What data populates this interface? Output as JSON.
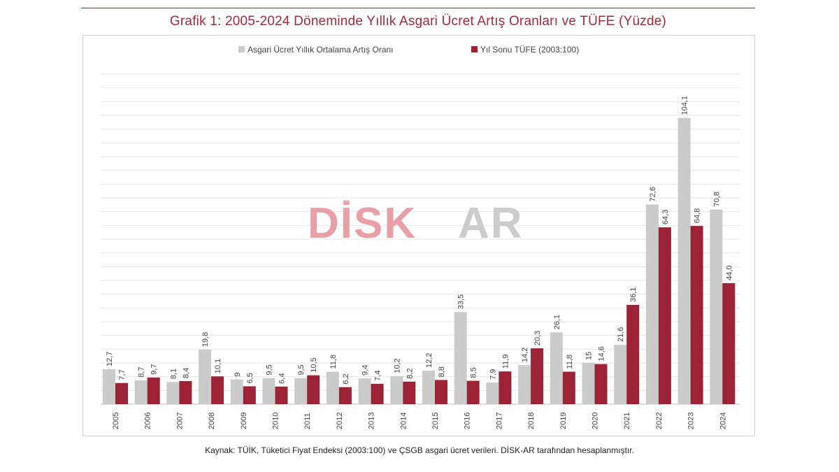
{
  "title": "Grafik 1: 2005-2024 Döneminde Yıllık Asgari Ücret Artış Oranları ve TÜFE (Yüzde)",
  "source": "Kaynak: TÜİK, Tüketici Fiyat Endeksi (2003:100) ve ÇSGB asgari ücret verileri. DİSK-AR tarafından hesaplanmıştır.",
  "watermark": {
    "part1": "DİSK",
    "part2": "AR"
  },
  "colors": {
    "series1": "#cbcbcb",
    "series2": "#9b2335",
    "title": "#a12a3c",
    "watermark1": "#e8a0a6",
    "watermark2": "#cccccc"
  },
  "chart_data": {
    "type": "bar",
    "categories": [
      "2005",
      "2006",
      "2007",
      "2008",
      "2009",
      "2010",
      "2011",
      "2012",
      "2013",
      "2014",
      "2015",
      "2016",
      "2017",
      "2018",
      "2019",
      "2020",
      "2021",
      "2022",
      "2023",
      "2024"
    ],
    "series": [
      {
        "name": "Asgari Ücret Yıllık Ortalama Artış Oranı",
        "values": [
          12.7,
          8.7,
          8.1,
          19.8,
          9,
          9.5,
          9.5,
          11.8,
          9.4,
          10.2,
          12.2,
          33.5,
          7.9,
          14.2,
          26.1,
          15,
          21.6,
          72.6,
          104.1,
          70.8
        ],
        "labels": [
          "12,7",
          "8,7",
          "8,1",
          "19,8",
          "9",
          "9,5",
          "9,5",
          "11,8",
          "9,4",
          "10,2",
          "12,2",
          "33,5",
          "7,9",
          "14,2",
          "26,1",
          "15",
          "21,6",
          "72,6",
          "104,1",
          "70,8"
        ]
      },
      {
        "name": "Yıl Sonu TÜFE (2003:100)",
        "values": [
          7.7,
          9.7,
          8.4,
          10.1,
          6.5,
          6.4,
          10.5,
          6.2,
          7.4,
          8.2,
          8.8,
          8.5,
          11.9,
          20.3,
          11.8,
          14.6,
          36.1,
          64.3,
          64.8,
          44.0
        ],
        "labels": [
          "7,7",
          "9,7",
          "8,4",
          "10,1",
          "6,5",
          "6,4",
          "10,5",
          "6,2",
          "7,4",
          "8,2",
          "8,8",
          "8,5",
          "11,9",
          "20,3",
          "11,8",
          "14,6",
          "36,1",
          "64,3",
          "64,8",
          "44,0"
        ]
      }
    ],
    "legend": "top-center",
    "grid": true,
    "ylim": [
      0,
      120
    ]
  }
}
